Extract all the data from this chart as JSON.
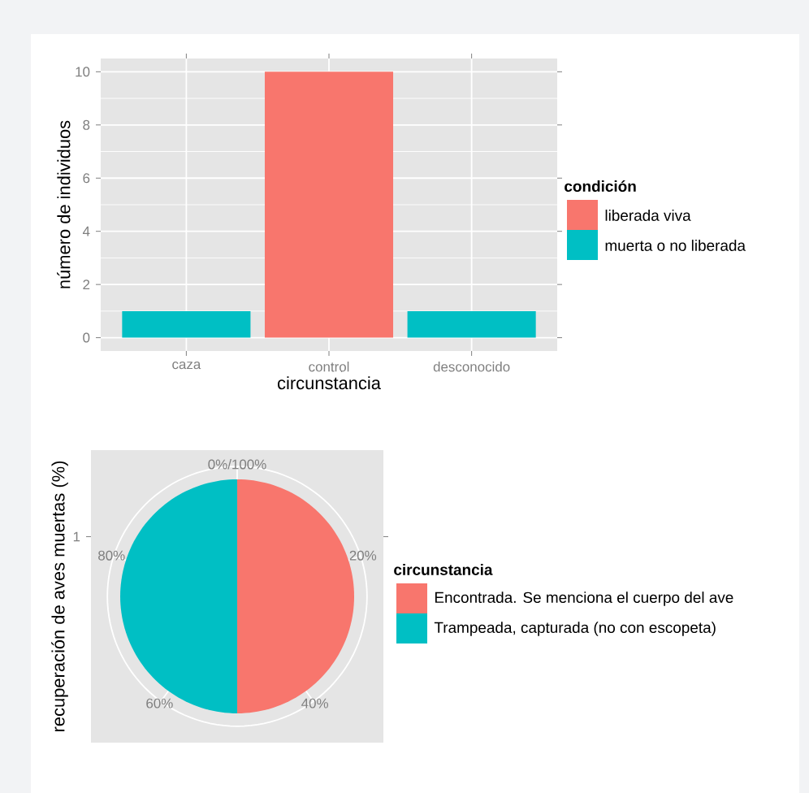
{
  "chart_data": [
    {
      "type": "bar",
      "categories": [
        "caza",
        "control",
        "desconocido"
      ],
      "series": [
        {
          "name": "liberada viva",
          "color": "#f8766d",
          "values": [
            null,
            10,
            null
          ]
        },
        {
          "name": "muerta o no liberada",
          "color": "#00bfc4",
          "values": [
            1,
            null,
            1
          ]
        }
      ],
      "xlabel": "circunstancia",
      "ylabel": "número de individuos",
      "ylim": [
        -0.5,
        10.5
      ],
      "yticks": [
        0,
        2,
        4,
        6,
        8,
        10
      ],
      "grid": true,
      "legend": "right",
      "legend_title": "condición"
    },
    {
      "type": "pie",
      "categories": [
        "Encontrada. Se menciona el cuerpo del ave",
        "Trampeada, capturada (no con escopeta)"
      ],
      "values": [
        50,
        50
      ],
      "colors": [
        "#f8766d",
        "#00bfc4"
      ],
      "ylabel": "recuperación de aves muertas (%)",
      "annotations": [
        "0%/100%",
        "20%",
        "40%",
        "60%",
        "80%",
        "1"
      ],
      "grid": true,
      "legend": "right",
      "legend_title": "circunstancia"
    }
  ]
}
